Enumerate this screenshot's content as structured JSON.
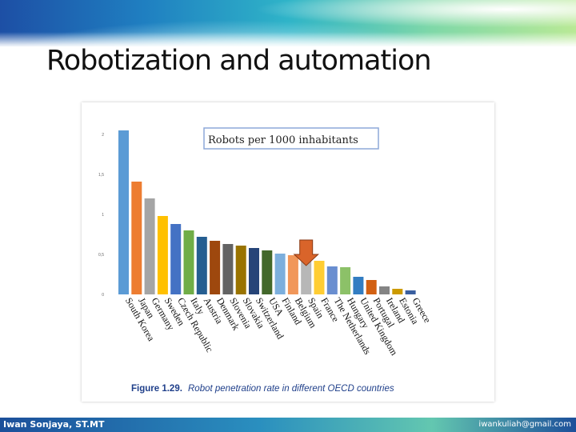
{
  "slide": {
    "title": "Robotization and automation",
    "footer_left": "Iwan Sonjaya, ST.MT",
    "footer_right": "iwankuliah@gmail.com"
  },
  "chart_data": {
    "type": "bar",
    "legend_box": "Robots per 1000 inhabitants",
    "caption_label": "Figure 1.29.",
    "caption_text": "Robot penetration rate in different OECD countries",
    "ylim": [
      0,
      2
    ],
    "yticks": [
      {
        "value": 0,
        "label": "0"
      },
      {
        "value": 0.5,
        "label": "0,5"
      },
      {
        "value": 1,
        "label": "1"
      },
      {
        "value": 1.5,
        "label": "1,5"
      },
      {
        "value": 2,
        "label": "2"
      }
    ],
    "categories": [
      "South Korea",
      "Japan",
      "Germany",
      "Sweden",
      "Czech Republic",
      "Italy",
      "Austria",
      "Denmark",
      "Slovenia",
      "Slovakia",
      "Switzerland",
      "USA",
      "Finland",
      "Belgium",
      "Spain",
      "France",
      "The Netherlands",
      "Hungary",
      "United Kingdom",
      "Portugal",
      "Ireland",
      "Estonia",
      "Greece"
    ],
    "values": [
      2.05,
      1.41,
      1.2,
      0.98,
      0.88,
      0.8,
      0.72,
      0.67,
      0.63,
      0.61,
      0.58,
      0.55,
      0.51,
      0.49,
      0.46,
      0.42,
      0.35,
      0.34,
      0.22,
      0.18,
      0.1,
      0.07,
      0.05
    ],
    "colors": [
      "#5b9bd5",
      "#ed7d31",
      "#a5a5a5",
      "#ffc000",
      "#4472c4",
      "#70ad47",
      "#255e91",
      "#9e480e",
      "#636363",
      "#997300",
      "#264478",
      "#43682b",
      "#7cafdd",
      "#f1975a",
      "#b7b7b7",
      "#ffcd33",
      "#698ed0",
      "#8cc168",
      "#327dc2",
      "#d26012",
      "#848484",
      "#cc9a00",
      "#3a5fa0"
    ],
    "highlight": {
      "category": "Spain",
      "marker": "arrow",
      "color": "#d9642a"
    }
  }
}
